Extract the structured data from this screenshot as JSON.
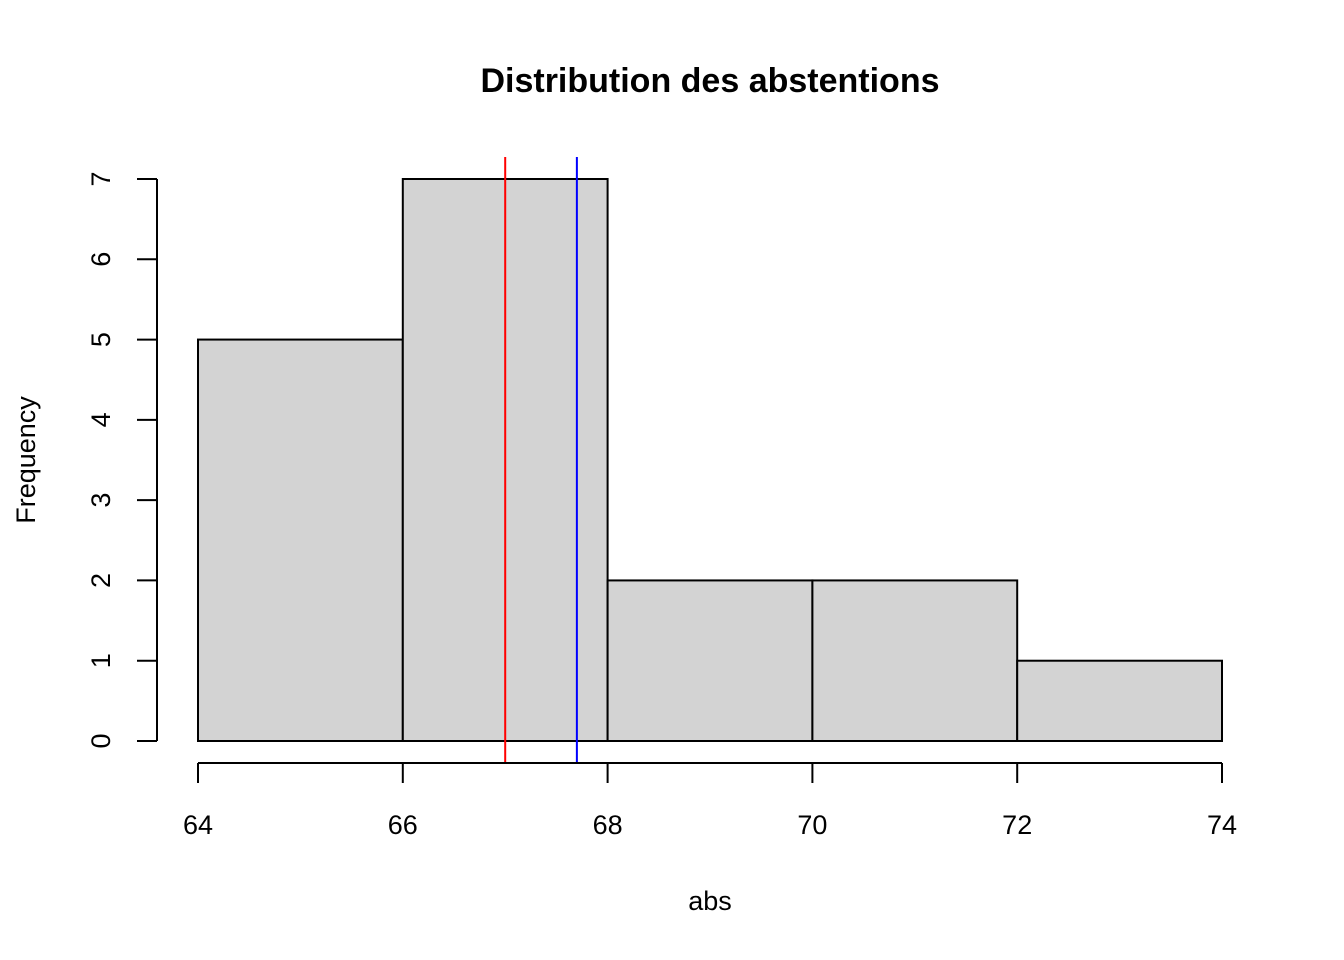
{
  "chart_data": {
    "type": "bar",
    "title": "Distribution des abstentions",
    "xlabel": "abs",
    "ylabel": "Frequency",
    "bins": [
      {
        "from": 64,
        "to": 66,
        "count": 5
      },
      {
        "from": 66,
        "to": 68,
        "count": 7
      },
      {
        "from": 68,
        "to": 70,
        "count": 2
      },
      {
        "from": 70,
        "to": 72,
        "count": 2
      },
      {
        "from": 72,
        "to": 74,
        "count": 1
      }
    ],
    "xticks": [
      64,
      66,
      68,
      70,
      72,
      74
    ],
    "yticks": [
      0,
      1,
      2,
      3,
      4,
      5,
      6,
      7
    ],
    "xlim": [
      64,
      74
    ],
    "ylim": [
      0,
      7
    ],
    "vlines": [
      {
        "x": 67.0,
        "color": "#ff0000"
      },
      {
        "x": 67.7,
        "color": "#0000ff"
      }
    ],
    "bar_fill": "#d3d3d3",
    "grid": false
  }
}
